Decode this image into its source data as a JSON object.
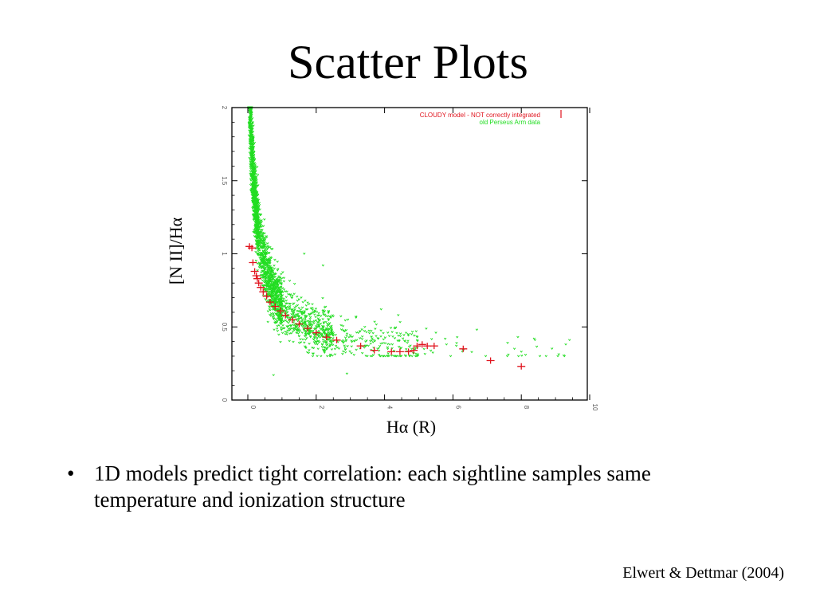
{
  "slide": {
    "title": "Scatter Plots",
    "bullets": [
      "1D models predict tight correlation: each sightline samples same temperature and ionization structure"
    ],
    "bullet_symbol": "•",
    "citation": "Elwert & Dettmar (2004)"
  },
  "chart_data": {
    "type": "scatter",
    "xlabel": "Hα (R)",
    "ylabel": "[N II]/Hα",
    "xlim": [
      0,
      10
    ],
    "ylim": [
      0,
      2
    ],
    "xticks": [
      "0",
      "2",
      "4",
      "6",
      "8",
      "10"
    ],
    "yticks": [
      "0",
      "0.5",
      "1",
      "1.5",
      "2"
    ],
    "legend": {
      "position": "top-right",
      "entries": [
        {
          "label": "CLOUDY model - NOT correctly integrated",
          "color": "#e0141e",
          "marker": "plus"
        },
        {
          "label": "old Perseus Arm data",
          "color": "#22dd22",
          "marker": "dot"
        }
      ]
    },
    "series": [
      {
        "name": "CLOUDY model - NOT correctly integrated",
        "color": "#e0141e",
        "marker": "plus",
        "points": [
          [
            0.05,
            1.05
          ],
          [
            0.12,
            1.04
          ],
          [
            0.15,
            0.94
          ],
          [
            0.2,
            0.88
          ],
          [
            0.25,
            0.85
          ],
          [
            0.28,
            0.83
          ],
          [
            0.32,
            0.8
          ],
          [
            0.38,
            0.77
          ],
          [
            0.45,
            0.74
          ],
          [
            0.55,
            0.71
          ],
          [
            0.65,
            0.67
          ],
          [
            0.8,
            0.64
          ],
          [
            0.95,
            0.61
          ],
          [
            1.1,
            0.58
          ],
          [
            1.3,
            0.55
          ],
          [
            1.5,
            0.52
          ],
          [
            1.75,
            0.49
          ],
          [
            2.0,
            0.46
          ],
          [
            2.3,
            0.43
          ],
          [
            2.6,
            0.41
          ],
          [
            3.3,
            0.37
          ],
          [
            3.7,
            0.34
          ],
          [
            4.2,
            0.33
          ],
          [
            4.45,
            0.33
          ],
          [
            4.7,
            0.33
          ],
          [
            4.85,
            0.34
          ],
          [
            4.95,
            0.37
          ],
          [
            5.1,
            0.38
          ],
          [
            5.25,
            0.37
          ],
          [
            5.45,
            0.37
          ],
          [
            6.3,
            0.35
          ],
          [
            7.1,
            0.27
          ],
          [
            8.0,
            0.23
          ]
        ]
      },
      {
        "name": "old Perseus Arm data",
        "color": "#22dd22",
        "marker": "dot",
        "curve": {
          "a": 0.28,
          "b": 0.45,
          "c": 0.2,
          "ymin": 0.3,
          "ymax": 2.0
        },
        "density": [
          {
            "xmin": 0.02,
            "xmax": 0.3,
            "count": 1100
          },
          {
            "xmin": 0.3,
            "xmax": 1.0,
            "count": 900
          },
          {
            "xmin": 1.0,
            "xmax": 2.5,
            "count": 500
          },
          {
            "xmin": 2.5,
            "xmax": 5.0,
            "count": 200
          },
          {
            "xmin": 5.0,
            "xmax": 9.5,
            "count": 30
          }
        ],
        "scatter_width": 0.09,
        "outliers": [
          [
            0.75,
            0.17
          ],
          [
            2.9,
            0.18
          ],
          [
            5.5,
            0.46
          ],
          [
            6.7,
            0.48
          ],
          [
            7.6,
            0.39
          ],
          [
            7.9,
            0.43
          ],
          [
            8.4,
            0.41
          ],
          [
            9.3,
            0.38
          ],
          [
            7.8,
            0.35
          ],
          [
            8.0,
            0.33
          ],
          [
            6.1,
            0.37
          ],
          [
            3.9,
            0.62
          ],
          [
            4.4,
            0.58
          ],
          [
            1.65,
            1.0
          ],
          [
            2.2,
            0.92
          ]
        ]
      }
    ]
  }
}
